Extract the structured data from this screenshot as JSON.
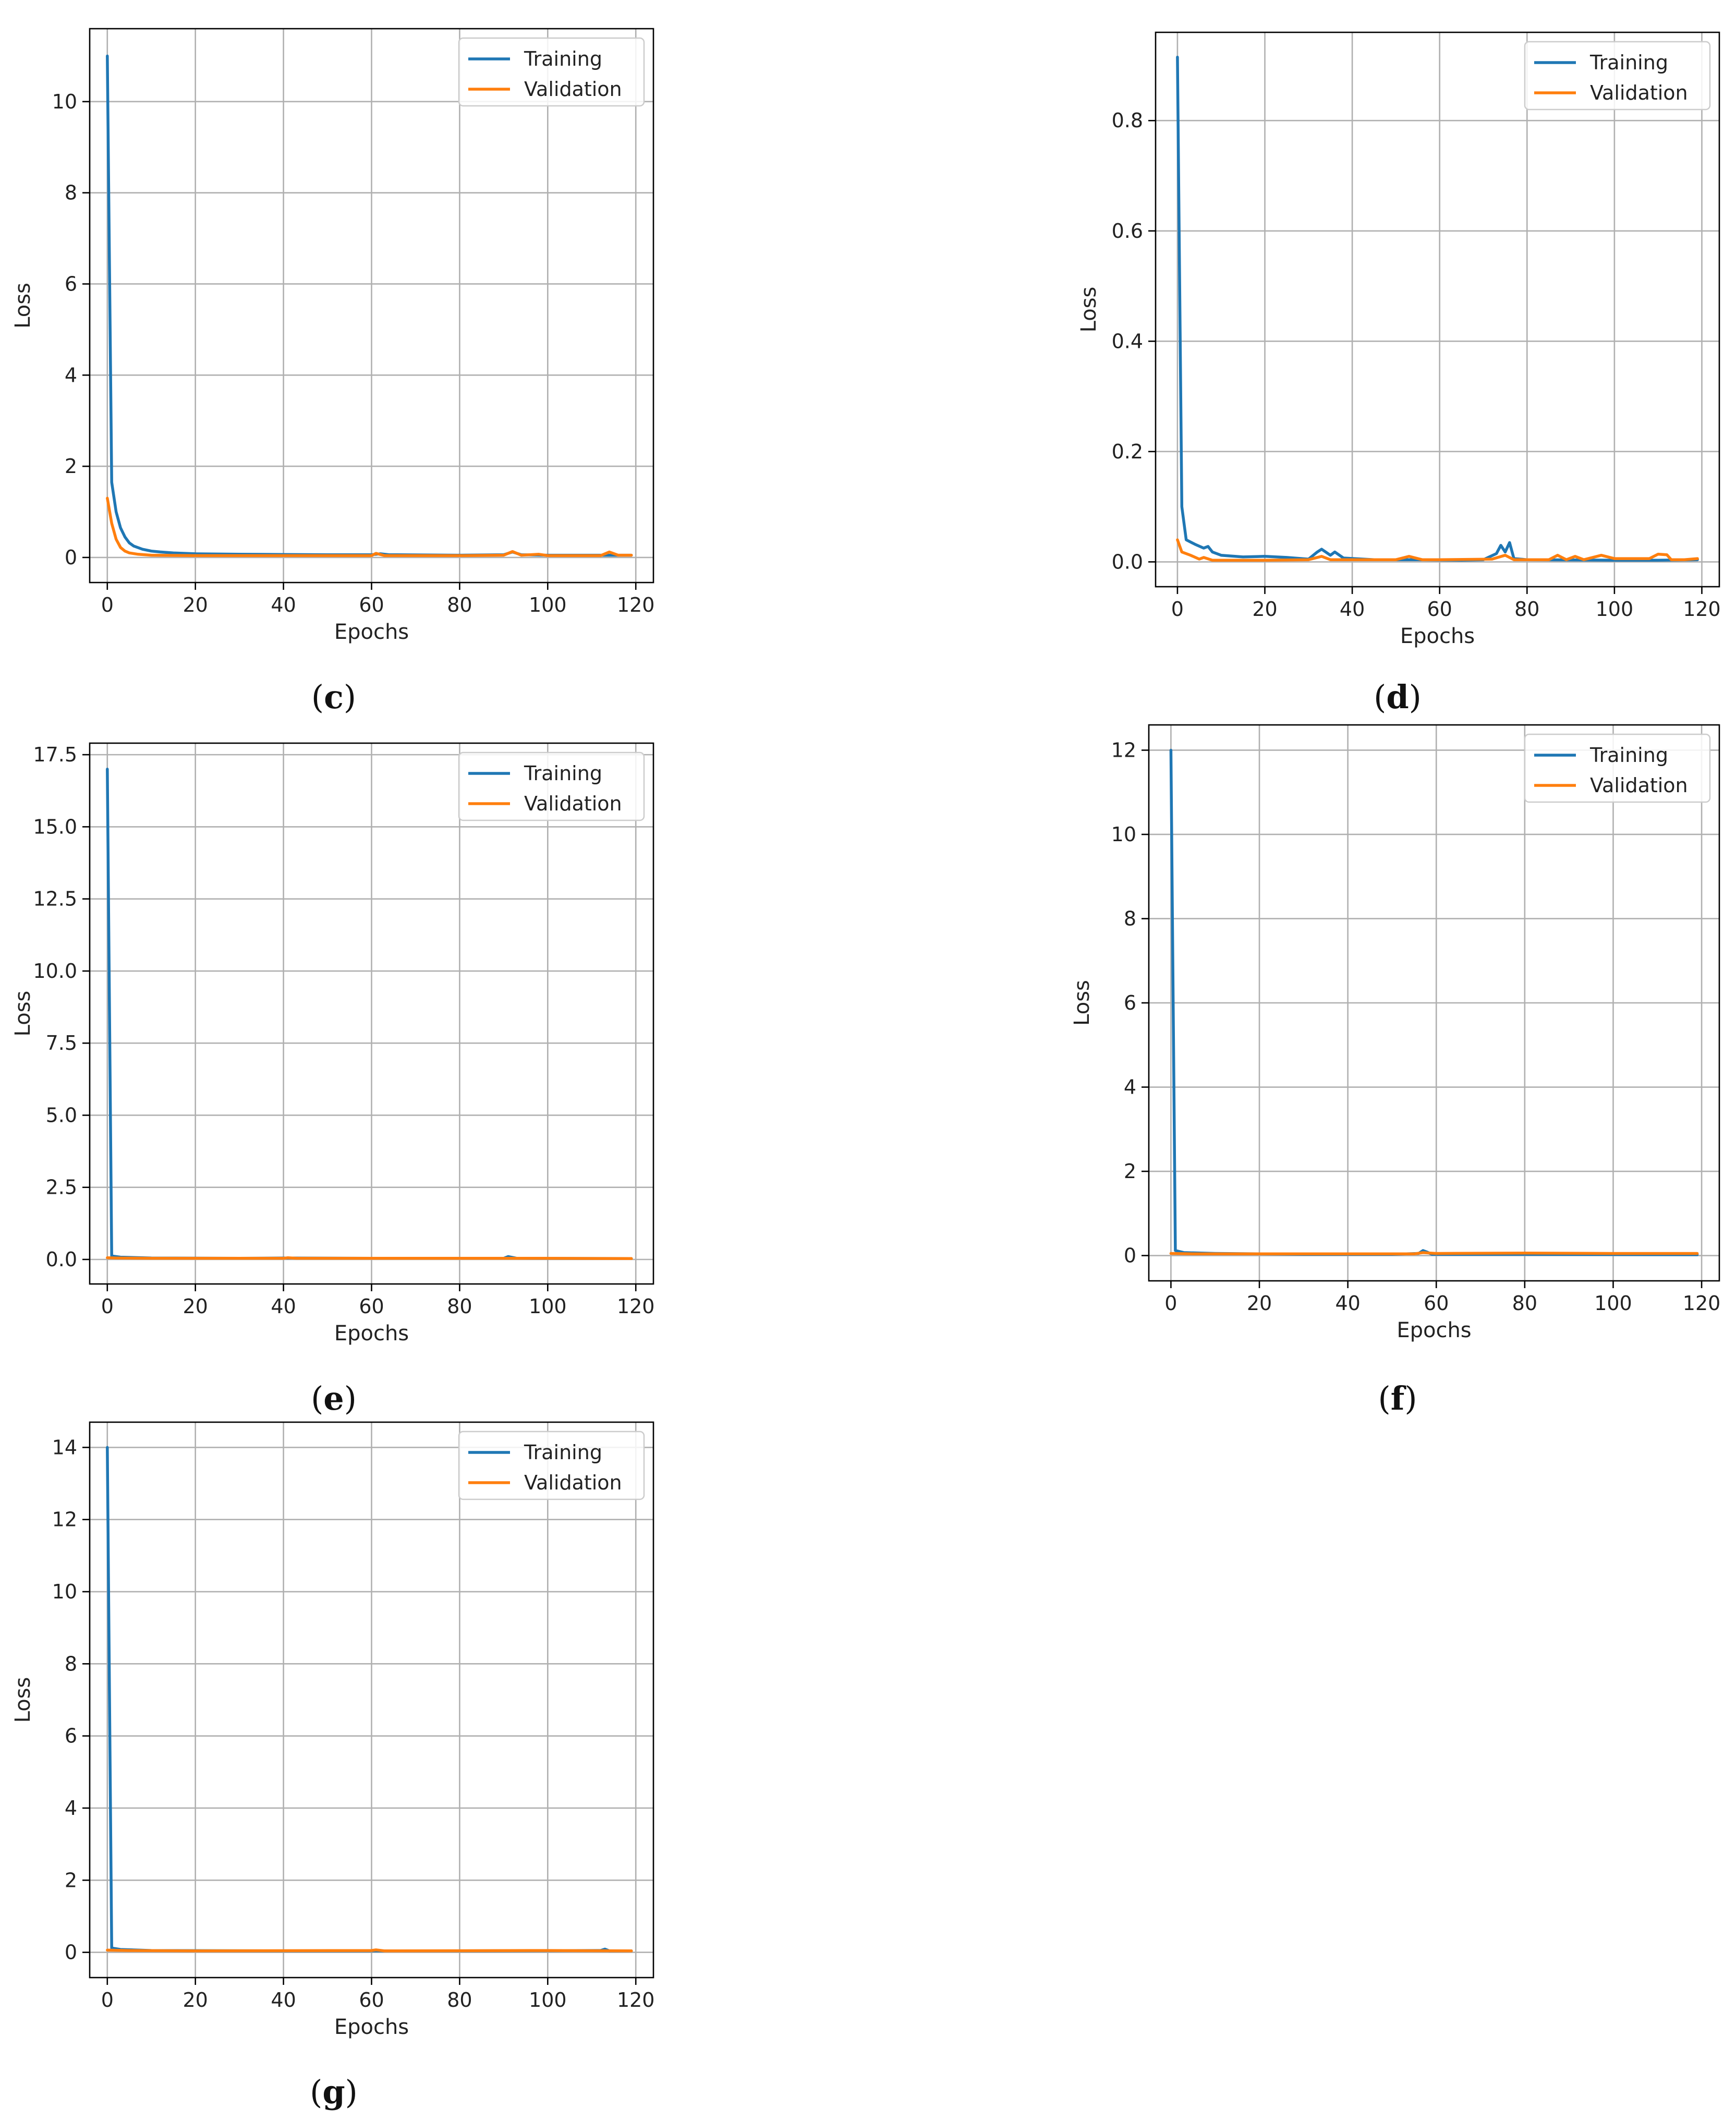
{
  "figure": {
    "panels": [
      {
        "id": "c",
        "caption_open": "(",
        "caption_letter": "c",
        "caption_close": ")"
      },
      {
        "id": "d",
        "caption_open": "(",
        "caption_letter": "d",
        "caption_close": ")"
      },
      {
        "id": "e",
        "caption_open": "(",
        "caption_letter": "e",
        "caption_close": ")"
      },
      {
        "id": "f",
        "caption_open": "(",
        "caption_letter": "f",
        "caption_close": ")"
      },
      {
        "id": "g",
        "caption_open": "(",
        "caption_letter": "g",
        "caption_close": ")"
      }
    ]
  },
  "colors": {
    "training": "#1f77b4",
    "validation": "#ff7f0e",
    "grid": "#b0b0b0"
  },
  "chart_data": [
    {
      "panel": "c",
      "type": "line",
      "title": "",
      "xlabel": "Epochs",
      "ylabel": "Loss",
      "xlim": [
        -4,
        124
      ],
      "ylim": [
        -0.55,
        11.6
      ],
      "xticks": [
        0,
        20,
        40,
        60,
        80,
        100,
        120
      ],
      "yticks": [
        0,
        2,
        4,
        6,
        8,
        10
      ],
      "ytick_labels": [
        "0",
        "2",
        "4",
        "6",
        "8",
        "10"
      ],
      "grid": true,
      "legend": "top-right",
      "series": [
        {
          "name": "Training",
          "points": [
            [
              0,
              11.0
            ],
            [
              1,
              1.65
            ],
            [
              2,
              1.0
            ],
            [
              3,
              0.65
            ],
            [
              4,
              0.45
            ],
            [
              5,
              0.32
            ],
            [
              6,
              0.25
            ],
            [
              8,
              0.18
            ],
            [
              10,
              0.14
            ],
            [
              12,
              0.12
            ],
            [
              15,
              0.1
            ],
            [
              20,
              0.08
            ],
            [
              30,
              0.07
            ],
            [
              40,
              0.065
            ],
            [
              50,
              0.06
            ],
            [
              60,
              0.06
            ],
            [
              62,
              0.08
            ],
            [
              64,
              0.06
            ],
            [
              80,
              0.05
            ],
            [
              90,
              0.06
            ],
            [
              92,
              0.12
            ],
            [
              94,
              0.06
            ],
            [
              100,
              0.05
            ],
            [
              110,
              0.05
            ],
            [
              119,
              0.05
            ]
          ]
        },
        {
          "name": "Validation",
          "points": [
            [
              0,
              1.3
            ],
            [
              1,
              0.75
            ],
            [
              2,
              0.4
            ],
            [
              3,
              0.22
            ],
            [
              4,
              0.14
            ],
            [
              5,
              0.1
            ],
            [
              7,
              0.07
            ],
            [
              10,
              0.05
            ],
            [
              20,
              0.04
            ],
            [
              40,
              0.04
            ],
            [
              60,
              0.04
            ],
            [
              61,
              0.09
            ],
            [
              63,
              0.04
            ],
            [
              80,
              0.04
            ],
            [
              90,
              0.05
            ],
            [
              92,
              0.13
            ],
            [
              94,
              0.05
            ],
            [
              98,
              0.07
            ],
            [
              100,
              0.04
            ],
            [
              112,
              0.04
            ],
            [
              114,
              0.12
            ],
            [
              116,
              0.05
            ],
            [
              119,
              0.05
            ]
          ]
        }
      ]
    },
    {
      "panel": "d",
      "type": "line",
      "title": "",
      "xlabel": "Epochs",
      "ylabel": "Loss",
      "xlim": [
        -5,
        124
      ],
      "ylim": [
        -0.045,
        0.96
      ],
      "xticks": [
        0,
        20,
        40,
        60,
        80,
        100,
        120
      ],
      "yticks": [
        0.0,
        0.2,
        0.4,
        0.6,
        0.8
      ],
      "ytick_labels": [
        "0.0",
        "0.2",
        "0.4",
        "0.6",
        "0.8"
      ],
      "grid": true,
      "legend": "top-right",
      "series": [
        {
          "name": "Training",
          "points": [
            [
              0,
              0.915
            ],
            [
              1,
              0.1
            ],
            [
              2,
              0.04
            ],
            [
              4,
              0.032
            ],
            [
              6,
              0.025
            ],
            [
              7,
              0.028
            ],
            [
              8,
              0.018
            ],
            [
              10,
              0.012
            ],
            [
              15,
              0.009
            ],
            [
              20,
              0.01
            ],
            [
              25,
              0.008
            ],
            [
              30,
              0.005
            ],
            [
              32,
              0.018
            ],
            [
              33,
              0.023
            ],
            [
              35,
              0.012
            ],
            [
              36,
              0.018
            ],
            [
              38,
              0.007
            ],
            [
              45,
              0.004
            ],
            [
              55,
              0.004
            ],
            [
              65,
              0.003
            ],
            [
              70,
              0.004
            ],
            [
              73,
              0.015
            ],
            [
              74,
              0.03
            ],
            [
              75,
              0.018
            ],
            [
              76,
              0.035
            ],
            [
              77,
              0.006
            ],
            [
              80,
              0.004
            ],
            [
              100,
              0.003
            ],
            [
              110,
              0.003
            ],
            [
              119,
              0.004
            ]
          ]
        },
        {
          "name": "Validation",
          "points": [
            [
              0,
              0.04
            ],
            [
              1,
              0.018
            ],
            [
              3,
              0.012
            ],
            [
              5,
              0.005
            ],
            [
              6,
              0.008
            ],
            [
              8,
              0.003
            ],
            [
              20,
              0.003
            ],
            [
              30,
              0.004
            ],
            [
              33,
              0.01
            ],
            [
              35,
              0.004
            ],
            [
              50,
              0.004
            ],
            [
              53,
              0.01
            ],
            [
              56,
              0.004
            ],
            [
              60,
              0.004
            ],
            [
              72,
              0.005
            ],
            [
              75,
              0.012
            ],
            [
              77,
              0.004
            ],
            [
              85,
              0.004
            ],
            [
              87,
              0.012
            ],
            [
              89,
              0.004
            ],
            [
              91,
              0.01
            ],
            [
              93,
              0.004
            ],
            [
              97,
              0.012
            ],
            [
              100,
              0.006
            ],
            [
              108,
              0.006
            ],
            [
              110,
              0.014
            ],
            [
              112,
              0.013
            ],
            [
              113,
              0.004
            ],
            [
              116,
              0.004
            ],
            [
              119,
              0.006
            ]
          ]
        }
      ]
    },
    {
      "panel": "e",
      "type": "line",
      "title": "",
      "xlabel": "Epochs",
      "ylabel": "Loss",
      "xlim": [
        -4,
        124
      ],
      "ylim": [
        -0.85,
        17.9
      ],
      "xticks": [
        0,
        20,
        40,
        60,
        80,
        100,
        120
      ],
      "yticks": [
        0.0,
        2.5,
        5.0,
        7.5,
        10.0,
        12.5,
        15.0,
        17.5
      ],
      "ytick_labels": [
        "0.0",
        "2.5",
        "5.0",
        "7.5",
        "10.0",
        "12.5",
        "15.0",
        "17.5"
      ],
      "grid": true,
      "legend": "top-right",
      "series": [
        {
          "name": "Training",
          "points": [
            [
              0,
              17.0
            ],
            [
              1,
              0.12
            ],
            [
              3,
              0.08
            ],
            [
              10,
              0.05
            ],
            [
              30,
              0.04
            ],
            [
              40,
              0.05
            ],
            [
              60,
              0.04
            ],
            [
              90,
              0.04
            ],
            [
              91,
              0.1
            ],
            [
              93,
              0.04
            ],
            [
              119,
              0.03
            ]
          ]
        },
        {
          "name": "Validation",
          "points": [
            [
              0,
              0.06
            ],
            [
              2,
              0.05
            ],
            [
              10,
              0.04
            ],
            [
              40,
              0.04
            ],
            [
              41,
              0.06
            ],
            [
              43,
              0.04
            ],
            [
              80,
              0.04
            ],
            [
              100,
              0.04
            ],
            [
              119,
              0.03
            ]
          ]
        }
      ]
    },
    {
      "panel": "f",
      "type": "line",
      "title": "",
      "xlabel": "Epochs",
      "ylabel": "Loss",
      "xlim": [
        -5,
        124
      ],
      "ylim": [
        -0.6,
        12.6
      ],
      "xticks": [
        0,
        20,
        40,
        60,
        80,
        100,
        120
      ],
      "yticks": [
        0,
        2,
        4,
        6,
        8,
        10,
        12
      ],
      "ytick_labels": [
        "0",
        "2",
        "4",
        "6",
        "8",
        "10",
        "12"
      ],
      "grid": true,
      "legend": "top-right",
      "series": [
        {
          "name": "Training",
          "points": [
            [
              0,
              12.0
            ],
            [
              1,
              0.12
            ],
            [
              3,
              0.07
            ],
            [
              10,
              0.05
            ],
            [
              30,
              0.03
            ],
            [
              50,
              0.03
            ],
            [
              56,
              0.05
            ],
            [
              57,
              0.12
            ],
            [
              58,
              0.08
            ],
            [
              59,
              0.03
            ],
            [
              80,
              0.03
            ],
            [
              119,
              0.02
            ]
          ]
        },
        {
          "name": "Validation",
          "points": [
            [
              0,
              0.05
            ],
            [
              5,
              0.04
            ],
            [
              30,
              0.04
            ],
            [
              55,
              0.04
            ],
            [
              57,
              0.07
            ],
            [
              60,
              0.05
            ],
            [
              80,
              0.06
            ],
            [
              100,
              0.05
            ],
            [
              119,
              0.05
            ]
          ]
        }
      ]
    },
    {
      "panel": "g",
      "type": "line",
      "title": "",
      "xlabel": "Epochs",
      "ylabel": "Loss",
      "xlim": [
        -4,
        124
      ],
      "ylim": [
        -0.7,
        14.7
      ],
      "xticks": [
        0,
        20,
        40,
        60,
        80,
        100,
        120
      ],
      "yticks": [
        0,
        2,
        4,
        6,
        8,
        10,
        12,
        14
      ],
      "ytick_labels": [
        "0",
        "2",
        "4",
        "6",
        "8",
        "10",
        "12",
        "14"
      ],
      "grid": true,
      "legend": "top-right",
      "series": [
        {
          "name": "Training",
          "points": [
            [
              0,
              14.0
            ],
            [
              1,
              0.12
            ],
            [
              3,
              0.08
            ],
            [
              10,
              0.05
            ],
            [
              40,
              0.04
            ],
            [
              80,
              0.04
            ],
            [
              112,
              0.05
            ],
            [
              113,
              0.09
            ],
            [
              114,
              0.04
            ],
            [
              119,
              0.04
            ]
          ]
        },
        {
          "name": "Validation",
          "points": [
            [
              0,
              0.06
            ],
            [
              5,
              0.05
            ],
            [
              20,
              0.04
            ],
            [
              60,
              0.05
            ],
            [
              61,
              0.07
            ],
            [
              63,
              0.04
            ],
            [
              100,
              0.05
            ],
            [
              119,
              0.04
            ]
          ]
        }
      ]
    }
  ]
}
